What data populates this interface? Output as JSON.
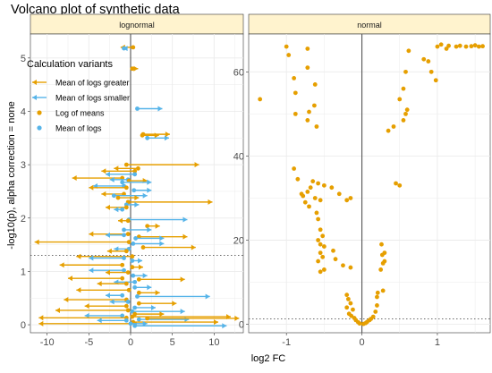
{
  "chart_data": {
    "type": "scatter",
    "title": "Volcano plot of synthetic data",
    "xlabel": "log2 FC",
    "ylabel": "-log10(p), alpha correction = none",
    "colors": {
      "orange": "#E69F00",
      "blue": "#56B4E9",
      "strip_fill": "#FFF3CE",
      "grid": "#ebebeb",
      "zero_line": "#666666",
      "threshold_line": "#666666"
    },
    "legend": {
      "title": "Calculation variants",
      "placement": "top-left inside lognormal panel",
      "items": [
        {
          "label": "Mean of logs greater",
          "symbol": "arrow",
          "color": "#E69F00"
        },
        {
          "label": "Mean of logs smaller",
          "symbol": "arrow",
          "color": "#56B4E9"
        },
        {
          "label": "Log of means",
          "symbol": "point",
          "color": "#E69F00"
        },
        {
          "label": "Mean of logs",
          "symbol": "point",
          "color": "#56B4E9"
        }
      ]
    },
    "panels": [
      {
        "strip": "lognormal",
        "xlim": [
          -12,
          13.5
        ],
        "ylim": [
          -0.15,
          5.45
        ],
        "xticks": [
          -10,
          -5,
          0,
          5,
          10
        ],
        "yticks": [
          0,
          1,
          2,
          3,
          4,
          5
        ],
        "threshold_y": 1.3,
        "grid": true,
        "segments": [
          {
            "x0": 0.3,
            "x1": -1.2,
            "y": 5.2,
            "dir": "greater",
            "point": "log"
          },
          {
            "x0": -0.8,
            "x1": -0.9,
            "y": 5.18,
            "dir": "smaller",
            "point": "mean"
          },
          {
            "x0": 0.2,
            "x1": 0.9,
            "y": 4.8,
            "dir": "greater",
            "point": "log"
          },
          {
            "x0": 0.8,
            "x1": 3.8,
            "y": 4.05,
            "dir": "smaller",
            "point": "mean"
          },
          {
            "x0": 1.4,
            "x1": 3.4,
            "y": 3.55,
            "dir": "greater",
            "point": "log"
          },
          {
            "x0": 2.0,
            "x1": 4.6,
            "y": 3.5,
            "dir": "smaller",
            "point": "mean"
          },
          {
            "x0": 1.5,
            "x1": 4.7,
            "y": 3.57,
            "dir": "greater",
            "point": "log"
          },
          {
            "x0": -0.5,
            "x1": 8.2,
            "y": 3.0,
            "dir": "greater",
            "point": "log"
          },
          {
            "x0": 0.9,
            "x1": -2.0,
            "y": 2.93,
            "dir": "greater",
            "point": "log"
          },
          {
            "x0": 0.5,
            "x1": -3.5,
            "y": 2.88,
            "dir": "greater",
            "point": "log"
          },
          {
            "x0": 0.5,
            "x1": -3.0,
            "y": 2.82,
            "dir": "smaller",
            "point": "mean"
          },
          {
            "x0": -1.0,
            "x1": -7.0,
            "y": 2.75,
            "dir": "greater",
            "point": "log"
          },
          {
            "x0": -0.3,
            "x1": -2.5,
            "y": 2.72,
            "dir": "smaller",
            "point": "mean"
          },
          {
            "x0": -0.2,
            "x1": 2.0,
            "y": 2.7,
            "dir": "greater",
            "point": "log"
          },
          {
            "x0": -1.0,
            "x1": 2.5,
            "y": 2.67,
            "dir": "smaller",
            "point": "mean"
          },
          {
            "x0": -0.8,
            "x1": -4.5,
            "y": 2.6,
            "dir": "smaller",
            "point": "mean"
          },
          {
            "x0": -0.5,
            "x1": -5.0,
            "y": 2.57,
            "dir": "greater",
            "point": "log"
          },
          {
            "x0": 0.4,
            "x1": 2.5,
            "y": 2.52,
            "dir": "smaller",
            "point": "mean"
          },
          {
            "x0": -0.8,
            "x1": -3.5,
            "y": 2.45,
            "dir": "greater",
            "point": "log"
          },
          {
            "x0": -2.0,
            "x1": 2.0,
            "y": 2.42,
            "dir": "smaller",
            "point": "mean"
          },
          {
            "x0": -1.5,
            "x1": 1.0,
            "y": 2.38,
            "dir": "greater",
            "point": "log"
          },
          {
            "x0": -0.3,
            "x1": 9.8,
            "y": 2.3,
            "dir": "greater",
            "point": "log"
          },
          {
            "x0": -0.5,
            "x1": 1.0,
            "y": 2.25,
            "dir": "smaller",
            "point": "mean"
          },
          {
            "x0": -0.5,
            "x1": -3.0,
            "y": 2.2,
            "dir": "greater",
            "point": "log"
          },
          {
            "x0": -1.0,
            "x1": -2.0,
            "y": 2.16,
            "dir": "smaller",
            "point": "mean"
          },
          {
            "x0": -0.2,
            "x1": 6.8,
            "y": 1.97,
            "dir": "smaller",
            "point": "mean"
          },
          {
            "x0": -0.3,
            "x1": -1.5,
            "y": 1.95,
            "dir": "greater",
            "point": "log"
          },
          {
            "x0": 2.0,
            "x1": 3.5,
            "y": 1.85,
            "dir": "greater",
            "point": "log"
          },
          {
            "x0": -0.8,
            "x1": 2.5,
            "y": 1.78,
            "dir": "smaller",
            "point": "mean"
          },
          {
            "x0": -0.3,
            "x1": -5.0,
            "y": 1.7,
            "dir": "greater",
            "point": "log"
          },
          {
            "x0": -0.8,
            "x1": -3.0,
            "y": 1.68,
            "dir": "smaller",
            "point": "mean"
          },
          {
            "x0": 1.0,
            "x1": 6.8,
            "y": 1.65,
            "dir": "greater",
            "point": "log"
          },
          {
            "x0": 0.6,
            "x1": 4.0,
            "y": 1.62,
            "dir": "smaller",
            "point": "mean"
          },
          {
            "x0": -0.2,
            "x1": -11.5,
            "y": 1.55,
            "dir": "greater",
            "point": "log"
          },
          {
            "x0": 0.3,
            "x1": 4.0,
            "y": 1.52,
            "dir": "smaller",
            "point": "mean"
          },
          {
            "x0": 1.5,
            "x1": 7.8,
            "y": 1.45,
            "dir": "greater",
            "point": "log"
          },
          {
            "x0": -0.2,
            "x1": -2.0,
            "y": 1.42,
            "dir": "smaller",
            "point": "mean"
          },
          {
            "x0": -0.5,
            "x1": -2.8,
            "y": 1.38,
            "dir": "greater",
            "point": "log"
          },
          {
            "x0": 0.2,
            "x1": -6.5,
            "y": 1.28,
            "dir": "greater",
            "point": "log"
          },
          {
            "x0": -0.8,
            "x1": -5.0,
            "y": 1.25,
            "dir": "smaller",
            "point": "mean"
          },
          {
            "x0": 0.2,
            "x1": 1.4,
            "y": 1.2,
            "dir": "smaller",
            "point": "mean"
          },
          {
            "x0": -1.0,
            "x1": -8.5,
            "y": 1.12,
            "dir": "greater",
            "point": "log"
          },
          {
            "x0": 0.2,
            "x1": 1.5,
            "y": 1.08,
            "dir": "greater",
            "point": "log"
          },
          {
            "x0": -0.8,
            "x1": -5.0,
            "y": 1.02,
            "dir": "smaller",
            "point": "mean"
          },
          {
            "x0": -0.3,
            "x1": -3.0,
            "y": 0.98,
            "dir": "greater",
            "point": "log"
          },
          {
            "x0": 0.3,
            "x1": 2.0,
            "y": 0.92,
            "dir": "smaller",
            "point": "mean"
          },
          {
            "x0": -1.0,
            "x1": -7.5,
            "y": 0.87,
            "dir": "greater",
            "point": "log"
          },
          {
            "x0": 1.0,
            "x1": 6.5,
            "y": 0.85,
            "dir": "greater",
            "point": "log"
          },
          {
            "x0": 0.5,
            "x1": -2.0,
            "y": 0.8,
            "dir": "smaller",
            "point": "mean"
          },
          {
            "x0": -0.5,
            "x1": -4.0,
            "y": 0.77,
            "dir": "greater",
            "point": "log"
          },
          {
            "x0": 0.5,
            "x1": 2.5,
            "y": 0.7,
            "dir": "smaller",
            "point": "mean"
          },
          {
            "x0": -0.2,
            "x1": -6.5,
            "y": 0.65,
            "dir": "greater",
            "point": "log"
          },
          {
            "x0": 1.0,
            "x1": 3.5,
            "y": 0.6,
            "dir": "greater",
            "point": "log"
          },
          {
            "x0": -1.0,
            "x1": -3.0,
            "y": 0.55,
            "dir": "smaller",
            "point": "mean"
          },
          {
            "x0": 0.8,
            "x1": 9.5,
            "y": 0.53,
            "dir": "smaller",
            "point": "mean"
          },
          {
            "x0": -0.5,
            "x1": -8.0,
            "y": 0.47,
            "dir": "greater",
            "point": "log"
          },
          {
            "x0": -0.3,
            "x1": -2.5,
            "y": 0.43,
            "dir": "smaller",
            "point": "mean"
          },
          {
            "x0": 1.0,
            "x1": 5.5,
            "y": 0.4,
            "dir": "greater",
            "point": "log"
          },
          {
            "x0": -0.5,
            "x1": -5.5,
            "y": 0.35,
            "dir": "greater",
            "point": "log"
          },
          {
            "x0": 0.5,
            "x1": 3.0,
            "y": 0.32,
            "dir": "smaller",
            "point": "mean"
          },
          {
            "x0": -0.3,
            "x1": -9.0,
            "y": 0.27,
            "dir": "greater",
            "point": "log"
          },
          {
            "x0": 0.2,
            "x1": 6.5,
            "y": 0.25,
            "dir": "smaller",
            "point": "mean"
          },
          {
            "x0": 0.5,
            "x1": 4.0,
            "y": 0.2,
            "dir": "greater",
            "point": "log"
          },
          {
            "x0": -1.0,
            "x1": -5.5,
            "y": 0.17,
            "dir": "smaller",
            "point": "mean"
          },
          {
            "x0": 0.2,
            "x1": 12.0,
            "y": 0.15,
            "dir": "greater",
            "point": "log"
          },
          {
            "x0": -0.5,
            "x1": -11.0,
            "y": 0.13,
            "dir": "greater",
            "point": "log"
          },
          {
            "x0": 1.0,
            "x1": 7.0,
            "y": 0.1,
            "dir": "smaller",
            "point": "mean"
          },
          {
            "x0": 2.0,
            "x1": 13.0,
            "y": 0.12,
            "dir": "greater",
            "point": "log"
          },
          {
            "x0": -0.5,
            "x1": -4.0,
            "y": 0.08,
            "dir": "smaller",
            "point": "mean"
          },
          {
            "x0": 0.3,
            "x1": 10.5,
            "y": 0.05,
            "dir": "greater",
            "point": "log"
          },
          {
            "x0": 0.5,
            "x1": -11.0,
            "y": 0.02,
            "dir": "greater",
            "point": "log"
          },
          {
            "x0": 0.0,
            "x1": 2.0,
            "y": 0.02,
            "dir": "smaller",
            "point": "mean"
          },
          {
            "x0": 0.5,
            "x1": 11.5,
            "y": -0.02,
            "dir": "smaller",
            "point": "mean"
          }
        ]
      },
      {
        "strip": "normal",
        "xlim": [
          -1.5,
          1.7
        ],
        "ylim": [
          -2,
          69
        ],
        "xticks": [
          -1,
          0,
          1
        ],
        "yticks": [
          0,
          20,
          40,
          60
        ],
        "threshold_y": 1.3,
        "grid": true,
        "points": [
          [
            -1.35,
            53.5
          ],
          [
            -1.0,
            66
          ],
          [
            -0.97,
            64
          ],
          [
            -0.72,
            65.5
          ],
          [
            -0.9,
            58.5
          ],
          [
            -0.88,
            55
          ],
          [
            -0.72,
            61
          ],
          [
            -0.62,
            57
          ],
          [
            -0.88,
            50
          ],
          [
            -0.63,
            52
          ],
          [
            -0.72,
            48.5
          ],
          [
            -0.7,
            50.5
          ],
          [
            -0.6,
            47
          ],
          [
            -0.9,
            37
          ],
          [
            -0.85,
            34.5
          ],
          [
            -0.8,
            31
          ],
          [
            -0.78,
            30.5
          ],
          [
            -0.72,
            31.5
          ],
          [
            -0.68,
            32.5
          ],
          [
            -0.75,
            29
          ],
          [
            -0.7,
            28
          ],
          [
            -0.62,
            30
          ],
          [
            -0.65,
            34
          ],
          [
            -0.6,
            26.5
          ],
          [
            -0.55,
            29.5
          ],
          [
            -0.58,
            33.5
          ],
          [
            -0.5,
            33
          ],
          [
            -0.4,
            32.5
          ],
          [
            -0.3,
            31
          ],
          [
            -0.2,
            29.5
          ],
          [
            -0.15,
            30
          ],
          [
            -0.58,
            25
          ],
          [
            -0.55,
            22.5
          ],
          [
            -0.52,
            21
          ],
          [
            -0.58,
            20
          ],
          [
            -0.55,
            19
          ],
          [
            -0.5,
            18.5
          ],
          [
            -0.55,
            17
          ],
          [
            -0.52,
            16
          ],
          [
            -0.58,
            15
          ],
          [
            -0.5,
            13
          ],
          [
            -0.55,
            12.5
          ],
          [
            -0.38,
            17.5
          ],
          [
            -0.35,
            15.5
          ],
          [
            -0.25,
            14
          ],
          [
            -0.15,
            13.5
          ],
          [
            -0.2,
            7
          ],
          [
            -0.18,
            6
          ],
          [
            -0.15,
            5
          ],
          [
            -0.2,
            4
          ],
          [
            -0.12,
            3.5
          ],
          [
            -0.17,
            2.5
          ],
          [
            -0.14,
            2
          ],
          [
            -0.1,
            1.5
          ],
          [
            -0.08,
            1
          ],
          [
            -0.05,
            0.5
          ],
          [
            -0.03,
            0.2
          ],
          [
            0.02,
            0.1
          ],
          [
            0.05,
            0.3
          ],
          [
            0.07,
            0.6
          ],
          [
            0.1,
            1
          ],
          [
            0.12,
            1.3
          ],
          [
            0.15,
            1.8
          ],
          [
            0.18,
            3
          ],
          [
            0.2,
            4.5
          ],
          [
            0.2,
            6.5
          ],
          [
            0.21,
            7.5
          ],
          [
            0.28,
            8
          ],
          [
            0.25,
            13
          ],
          [
            0.28,
            14.5
          ],
          [
            0.3,
            15
          ],
          [
            0.27,
            16.5
          ],
          [
            0.3,
            17
          ],
          [
            0.26,
            19
          ],
          [
            0.35,
            46
          ],
          [
            0.42,
            47
          ],
          [
            0.45,
            33.5
          ],
          [
            0.5,
            33
          ],
          [
            0.55,
            48.5
          ],
          [
            0.58,
            50
          ],
          [
            0.6,
            51
          ],
          [
            0.55,
            56
          ],
          [
            0.5,
            53.5
          ],
          [
            0.58,
            60
          ],
          [
            0.62,
            65
          ],
          [
            0.82,
            63
          ],
          [
            0.88,
            62.5
          ],
          [
            0.92,
            60
          ],
          [
            0.98,
            58
          ],
          [
            1.0,
            66
          ],
          [
            1.05,
            66.5
          ],
          [
            1.12,
            65.5
          ],
          [
            1.15,
            66.2
          ],
          [
            1.25,
            66
          ],
          [
            1.3,
            66.2
          ],
          [
            1.38,
            66
          ],
          [
            1.45,
            66.1
          ],
          [
            1.5,
            66.3
          ],
          [
            1.55,
            66
          ],
          [
            1.6,
            66.1
          ]
        ]
      }
    ]
  }
}
